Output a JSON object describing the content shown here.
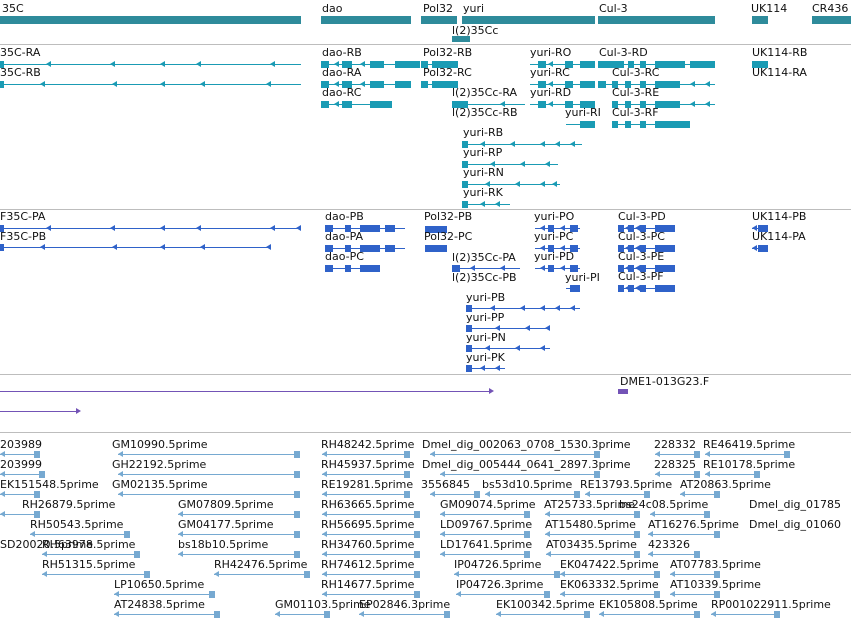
{
  "colors": {
    "gene": "#2e8b9b",
    "transcript": "#1a9bb4",
    "cds": "#2f62c9",
    "clone": "#7353b6",
    "est": "#76a9d1",
    "separator": "#bdbdbd"
  },
  "gene_track": {
    "labels": [
      "35C",
      "dao",
      "Pol32",
      "yuri",
      "Cul-3",
      "UK114",
      "CR436",
      "l(2)35Cc"
    ]
  },
  "transcript_track": {
    "labels": [
      "35C-RA",
      "35C-RB",
      "dao-RB",
      "dao-RA",
      "dao-RC",
      "Pol32-RB",
      "Pol32-RC",
      "l(2)35Cc-RA",
      "l(2)35Cc-RB",
      "yuri-RO",
      "yuri-RC",
      "yuri-RD",
      "yuri-RI",
      "yuri-RB",
      "yuri-RP",
      "yuri-RN",
      "yuri-RK",
      "Cul-3-RD",
      "Cul-3-RC",
      "Cul-3-RE",
      "Cul-3-RF",
      "UK114-RB",
      "UK114-RA"
    ]
  },
  "cds_track": {
    "labels": [
      "F35C-PA",
      "F35C-PB",
      "dao-PB",
      "dao-PA",
      "dao-PC",
      "Pol32-PB",
      "Pol32-PC",
      "l(2)35Cc-PA",
      "l(2)35Cc-PB",
      "yuri-PO",
      "yuri-PC",
      "yuri-PD",
      "yuri-PI",
      "yuri-PB",
      "yuri-PP",
      "yuri-PN",
      "yuri-PK",
      "Cul-3-PD",
      "Cul-3-PC",
      "Cul-3-PE",
      "Cul-3-PF",
      "UK114-PB",
      "UK114-PA"
    ]
  },
  "clone_track": {
    "labels": [
      "DME1-013G23.F"
    ]
  },
  "est_track": {
    "labels": [
      "203989",
      "203999",
      "EK151548.5prime",
      "RH26879.5prime",
      "RH50543.5prime",
      "RH63978.5prime",
      "RH51315.5prime",
      "GM10990.5prime",
      "GH22192.5prime",
      "GM02135.5prime",
      "GM07809.5prime",
      "GM04177.5prime",
      "bs18b10.5prime",
      "RH42476.5prime",
      "LP10650.5prime",
      "AT24838.5prime",
      "GM01103.5prime",
      "RH48242.5prime",
      "RH45937.5prime",
      "RE19281.5prime",
      "RH63665.5prime",
      "RH56695.5prime",
      "RH34760.5prime",
      "RH74612.5prime",
      "RH14677.5prime",
      "EP02846.3prime",
      "Dmel_dig_002063_0708_1530.3prime",
      "Dmel_dig_005444_0641_2897.3prime",
      "3556845",
      "bs53d10.5prime",
      "GM09074.5prime",
      "LD09767.5prime",
      "LD17641.5prime",
      "IP04726.5prime",
      "IP04726.3prime",
      "EK100342.5prime",
      "AT25733.5prime",
      "AT15480.5prime",
      "AT03435.5prime",
      "EK047422.5prime",
      "EK063332.5prime",
      "EK105808.5prime",
      "228332",
      "228325",
      "RE13793.5prime",
      "bs24c08.5prime",
      "AT16276.5prime",
      "423326",
      "AT07783.5prime",
      "AT10339.5prime",
      "RE46419.5prime",
      "RE10178.5prime",
      "AT20863.5prime",
      "Dmel_dig_01785",
      "Dmel_dig_01060",
      "SD20020.5prime",
      "RP001022911.5prime"
    ]
  }
}
